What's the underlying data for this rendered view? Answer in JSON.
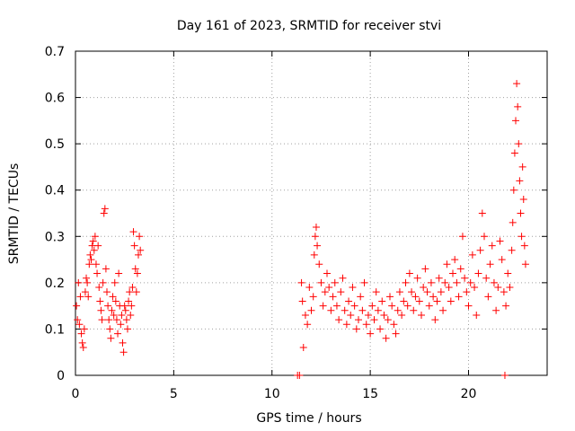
{
  "chart_data": {
    "type": "scatter",
    "title": "Day 161 of 2023, SRMTID for receiver stvi",
    "xlabel": "GPS time / hours",
    "ylabel": "SRMTID / TECUs",
    "xlim": [
      0,
      24
    ],
    "ylim": [
      0,
      0.7
    ],
    "xticks": [
      0,
      5,
      10,
      15,
      20
    ],
    "yticks": [
      0,
      0.1,
      0.2,
      0.3,
      0.4,
      0.5,
      0.6,
      0.7
    ],
    "xtick_labels": [
      "0",
      "5",
      "10",
      "15",
      "20"
    ],
    "ytick_labels": [
      "0",
      "0.1",
      "0.2",
      "0.3",
      "0.4",
      "0.5",
      "0.6",
      "0.7"
    ],
    "grid": true,
    "marker": "+",
    "color": "#ff0000",
    "series": [
      {
        "name": "SRMTID",
        "points": [
          [
            0.05,
            0.15
          ],
          [
            0.1,
            0.12
          ],
          [
            0.15,
            0.2
          ],
          [
            0.2,
            0.11
          ],
          [
            0.25,
            0.17
          ],
          [
            0.3,
            0.09
          ],
          [
            0.35,
            0.07
          ],
          [
            0.4,
            0.06
          ],
          [
            0.45,
            0.1
          ],
          [
            0.5,
            0.18
          ],
          [
            0.55,
            0.21
          ],
          [
            0.6,
            0.2
          ],
          [
            0.65,
            0.17
          ],
          [
            0.7,
            0.24
          ],
          [
            0.75,
            0.26
          ],
          [
            0.8,
            0.25
          ],
          [
            0.85,
            0.28
          ],
          [
            0.9,
            0.29
          ],
          [
            0.95,
            0.27
          ],
          [
            1.0,
            0.3
          ],
          [
            1.05,
            0.24
          ],
          [
            1.1,
            0.22
          ],
          [
            1.15,
            0.28
          ],
          [
            1.2,
            0.19
          ],
          [
            1.25,
            0.16
          ],
          [
            1.3,
            0.14
          ],
          [
            1.35,
            0.12
          ],
          [
            1.4,
            0.2
          ],
          [
            1.45,
            0.35
          ],
          [
            1.5,
            0.36
          ],
          [
            1.55,
            0.23
          ],
          [
            1.6,
            0.18
          ],
          [
            1.65,
            0.15
          ],
          [
            1.7,
            0.12
          ],
          [
            1.75,
            0.1
          ],
          [
            1.8,
            0.08
          ],
          [
            1.85,
            0.14
          ],
          [
            1.9,
            0.17
          ],
          [
            1.95,
            0.13
          ],
          [
            2.0,
            0.2
          ],
          [
            2.05,
            0.16
          ],
          [
            2.1,
            0.12
          ],
          [
            2.15,
            0.09
          ],
          [
            2.2,
            0.22
          ],
          [
            2.25,
            0.15
          ],
          [
            2.3,
            0.11
          ],
          [
            2.35,
            0.13
          ],
          [
            2.4,
            0.07
          ],
          [
            2.45,
            0.05
          ],
          [
            2.5,
            0.15
          ],
          [
            2.55,
            0.14
          ],
          [
            2.6,
            0.12
          ],
          [
            2.65,
            0.1
          ],
          [
            2.7,
            0.16
          ],
          [
            2.75,
            0.18
          ],
          [
            2.8,
            0.13
          ],
          [
            2.85,
            0.15
          ],
          [
            2.9,
            0.19
          ],
          [
            2.95,
            0.31
          ],
          [
            3.0,
            0.28
          ],
          [
            3.05,
            0.23
          ],
          [
            3.1,
            0.18
          ],
          [
            3.15,
            0.22
          ],
          [
            3.2,
            0.26
          ],
          [
            3.25,
            0.3
          ],
          [
            3.3,
            0.27
          ],
          [
            11.3,
            0.0
          ],
          [
            11.4,
            0.0
          ],
          [
            11.5,
            0.2
          ],
          [
            11.55,
            0.16
          ],
          [
            11.6,
            0.06
          ],
          [
            11.7,
            0.13
          ],
          [
            11.8,
            0.11
          ],
          [
            11.9,
            0.19
          ],
          [
            12.0,
            0.14
          ],
          [
            12.1,
            0.17
          ],
          [
            12.15,
            0.26
          ],
          [
            12.2,
            0.3
          ],
          [
            12.25,
            0.32
          ],
          [
            12.3,
            0.28
          ],
          [
            12.4,
            0.24
          ],
          [
            12.5,
            0.2
          ],
          [
            12.6,
            0.15
          ],
          [
            12.7,
            0.18
          ],
          [
            12.8,
            0.22
          ],
          [
            12.9,
            0.19
          ],
          [
            13.0,
            0.14
          ],
          [
            13.1,
            0.17
          ],
          [
            13.2,
            0.2
          ],
          [
            13.3,
            0.15
          ],
          [
            13.4,
            0.12
          ],
          [
            13.5,
            0.18
          ],
          [
            13.6,
            0.21
          ],
          [
            13.7,
            0.14
          ],
          [
            13.8,
            0.11
          ],
          [
            13.9,
            0.16
          ],
          [
            14.0,
            0.13
          ],
          [
            14.1,
            0.19
          ],
          [
            14.2,
            0.15
          ],
          [
            14.3,
            0.1
          ],
          [
            14.4,
            0.12
          ],
          [
            14.5,
            0.17
          ],
          [
            14.6,
            0.14
          ],
          [
            14.7,
            0.2
          ],
          [
            14.8,
            0.11
          ],
          [
            14.9,
            0.13
          ],
          [
            15.0,
            0.09
          ],
          [
            15.1,
            0.15
          ],
          [
            15.2,
            0.12
          ],
          [
            15.3,
            0.18
          ],
          [
            15.4,
            0.14
          ],
          [
            15.5,
            0.1
          ],
          [
            15.6,
            0.16
          ],
          [
            15.7,
            0.13
          ],
          [
            15.8,
            0.08
          ],
          [
            15.9,
            0.12
          ],
          [
            16.0,
            0.17
          ],
          [
            16.1,
            0.15
          ],
          [
            16.2,
            0.11
          ],
          [
            16.3,
            0.09
          ],
          [
            16.4,
            0.14
          ],
          [
            16.5,
            0.18
          ],
          [
            16.6,
            0.13
          ],
          [
            16.7,
            0.16
          ],
          [
            16.8,
            0.2
          ],
          [
            16.9,
            0.15
          ],
          [
            17.0,
            0.22
          ],
          [
            17.1,
            0.18
          ],
          [
            17.2,
            0.14
          ],
          [
            17.3,
            0.17
          ],
          [
            17.4,
            0.21
          ],
          [
            17.5,
            0.16
          ],
          [
            17.6,
            0.13
          ],
          [
            17.7,
            0.19
          ],
          [
            17.8,
            0.23
          ],
          [
            17.9,
            0.18
          ],
          [
            18.0,
            0.15
          ],
          [
            18.1,
            0.2
          ],
          [
            18.2,
            0.17
          ],
          [
            18.3,
            0.12
          ],
          [
            18.4,
            0.16
          ],
          [
            18.5,
            0.21
          ],
          [
            18.6,
            0.18
          ],
          [
            18.7,
            0.14
          ],
          [
            18.8,
            0.2
          ],
          [
            18.9,
            0.24
          ],
          [
            19.0,
            0.19
          ],
          [
            19.1,
            0.16
          ],
          [
            19.2,
            0.22
          ],
          [
            19.3,
            0.25
          ],
          [
            19.4,
            0.2
          ],
          [
            19.5,
            0.17
          ],
          [
            19.6,
            0.23
          ],
          [
            19.7,
            0.3
          ],
          [
            19.8,
            0.21
          ],
          [
            19.9,
            0.18
          ],
          [
            20.0,
            0.15
          ],
          [
            20.1,
            0.2
          ],
          [
            20.2,
            0.26
          ],
          [
            20.3,
            0.19
          ],
          [
            20.4,
            0.13
          ],
          [
            20.5,
            0.22
          ],
          [
            20.6,
            0.27
          ],
          [
            20.7,
            0.35
          ],
          [
            20.8,
            0.3
          ],
          [
            20.9,
            0.21
          ],
          [
            21.0,
            0.17
          ],
          [
            21.1,
            0.24
          ],
          [
            21.2,
            0.28
          ],
          [
            21.3,
            0.2
          ],
          [
            21.4,
            0.14
          ],
          [
            21.5,
            0.19
          ],
          [
            21.6,
            0.29
          ],
          [
            21.7,
            0.25
          ],
          [
            21.8,
            0.18
          ],
          [
            21.85,
            0.0
          ],
          [
            21.9,
            0.15
          ],
          [
            22.0,
            0.22
          ],
          [
            22.1,
            0.19
          ],
          [
            22.2,
            0.27
          ],
          [
            22.25,
            0.33
          ],
          [
            22.3,
            0.4
          ],
          [
            22.35,
            0.48
          ],
          [
            22.4,
            0.55
          ],
          [
            22.45,
            0.63
          ],
          [
            22.5,
            0.58
          ],
          [
            22.55,
            0.5
          ],
          [
            22.6,
            0.42
          ],
          [
            22.65,
            0.35
          ],
          [
            22.7,
            0.3
          ],
          [
            22.75,
            0.45
          ],
          [
            22.8,
            0.38
          ],
          [
            22.85,
            0.28
          ],
          [
            22.9,
            0.24
          ]
        ]
      }
    ]
  }
}
